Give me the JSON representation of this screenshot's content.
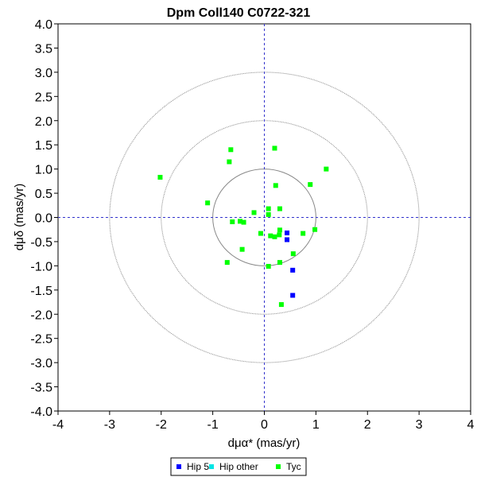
{
  "chart_data": {
    "type": "scatter",
    "title": "Dpm Coll140  C0722-321",
    "xlabel": "dμα* (mas/yr)",
    "ylabel": "dμδ (mas/yr)",
    "xlim": [
      -4,
      4
    ],
    "ylim": [
      -4,
      4
    ],
    "x_ticks": [
      "-4",
      "-3",
      "-2",
      "-1",
      "0",
      "1",
      "2",
      "3",
      "4"
    ],
    "y_ticks": [
      "4.0",
      "3.5",
      "3.0",
      "2.5",
      "2.0",
      "1.5",
      "1.0",
      "0.5",
      "0.0",
      "-0.5",
      "-1.0",
      "-1.5",
      "-2.0",
      "-2.5",
      "-3.0",
      "-3.5",
      "-4.0"
    ],
    "reference_circles_radii": [
      1,
      2,
      3
    ],
    "legend_position": "bottom-center",
    "grid": false,
    "series": [
      {
        "name": "Hip 5",
        "color": "#0000ff",
        "points": [
          [
            0.44,
            -0.32
          ],
          [
            0.44,
            -0.46
          ],
          [
            0.55,
            -1.09
          ],
          [
            0.55,
            -1.61
          ]
        ]
      },
      {
        "name": "Hip other",
        "color": "#00e5e5",
        "points": []
      },
      {
        "name": "Tyc",
        "color": "#00ff00",
        "points": [
          [
            -0.65,
            1.4
          ],
          [
            -0.68,
            1.15
          ],
          [
            0.2,
            1.43
          ],
          [
            -2.02,
            0.83
          ],
          [
            1.2,
            1.0
          ],
          [
            0.22,
            0.66
          ],
          [
            0.89,
            0.68
          ],
          [
            -1.1,
            0.3
          ],
          [
            -0.2,
            0.1
          ],
          [
            0.08,
            0.18
          ],
          [
            0.3,
            0.18
          ],
          [
            0.08,
            0.06
          ],
          [
            -0.62,
            -0.09
          ],
          [
            -0.47,
            -0.08
          ],
          [
            -0.4,
            -0.1
          ],
          [
            -0.07,
            -0.33
          ],
          [
            0.12,
            -0.38
          ],
          [
            0.2,
            -0.4
          ],
          [
            0.29,
            -0.36
          ],
          [
            0.3,
            -0.26
          ],
          [
            0.75,
            -0.33
          ],
          [
            0.98,
            -0.25
          ],
          [
            -0.43,
            -0.66
          ],
          [
            -0.72,
            -0.93
          ],
          [
            0.56,
            -0.75
          ],
          [
            0.3,
            -0.93
          ],
          [
            0.08,
            -1.01
          ],
          [
            0.33,
            -1.8
          ]
        ]
      }
    ]
  }
}
